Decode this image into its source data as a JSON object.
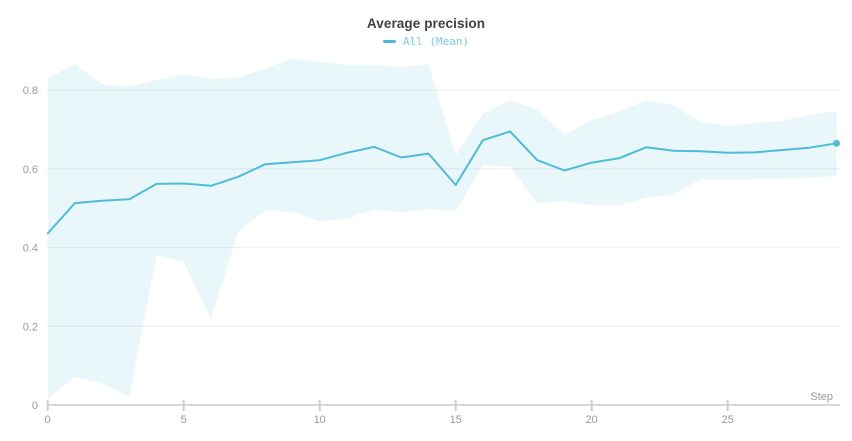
{
  "chart_data": {
    "type": "line",
    "title": "Average precision",
    "xlabel": "Step",
    "grid": "horizontal",
    "legend": {
      "position": "top",
      "items": [
        {
          "label": "All (Mean)"
        }
      ]
    },
    "x": [
      0,
      1,
      2,
      3,
      4,
      5,
      6,
      7,
      8,
      9,
      10,
      11,
      12,
      13,
      14,
      15,
      16,
      17,
      18,
      19,
      20,
      21,
      22,
      23,
      24,
      25,
      26,
      27,
      28,
      29
    ],
    "series": [
      {
        "name": "All (Mean)",
        "values": [
          0.436,
          0.513,
          0.519,
          0.523,
          0.562,
          0.563,
          0.557,
          0.58,
          0.612,
          0.617,
          0.622,
          0.641,
          0.656,
          0.629,
          0.639,
          0.559,
          0.673,
          0.695,
          0.622,
          0.596,
          0.616,
          0.627,
          0.655,
          0.646,
          0.645,
          0.641,
          0.642,
          0.648,
          0.654,
          0.665
        ],
        "band_upper": [
          0.83,
          0.866,
          0.815,
          0.809,
          0.826,
          0.841,
          0.828,
          0.832,
          0.855,
          0.88,
          0.872,
          0.865,
          0.865,
          0.859,
          0.867,
          0.634,
          0.74,
          0.775,
          0.75,
          0.687,
          0.724,
          0.745,
          0.775,
          0.762,
          0.72,
          0.71,
          0.716,
          0.722,
          0.737,
          0.747
        ],
        "band_lower": [
          0.015,
          0.072,
          0.055,
          0.02,
          0.381,
          0.364,
          0.218,
          0.44,
          0.495,
          0.491,
          0.466,
          0.474,
          0.496,
          0.49,
          0.498,
          0.493,
          0.61,
          0.606,
          0.512,
          0.519,
          0.508,
          0.508,
          0.527,
          0.534,
          0.574,
          0.572,
          0.574,
          0.574,
          0.578,
          0.582
        ],
        "end_marker": true
      }
    ],
    "x_ticks": {
      "values": [
        0,
        5,
        10,
        15,
        20,
        25
      ],
      "labels": [
        "0",
        "5",
        "10",
        "15",
        "20",
        "25"
      ]
    },
    "y_ticks": {
      "values": [
        0,
        0.2,
        0.4,
        0.6,
        0.8
      ],
      "labels": [
        "0",
        "0.2",
        "0.4",
        "0.6",
        "0.8"
      ]
    },
    "xlim": [
      0,
      29
    ],
    "ylim": [
      0,
      0.9
    ],
    "colors": {
      "line": "#4dbdd7",
      "band": "rgba(85,190,215,0.13)",
      "grid": "#ededed",
      "axis": "#d9d9d9",
      "tick": "#cfcfcf",
      "tick_label": "#9b9b9b",
      "title": "#3d4045",
      "legend_text": "#79cde0",
      "legend_swatch": "#49b9d4"
    }
  }
}
